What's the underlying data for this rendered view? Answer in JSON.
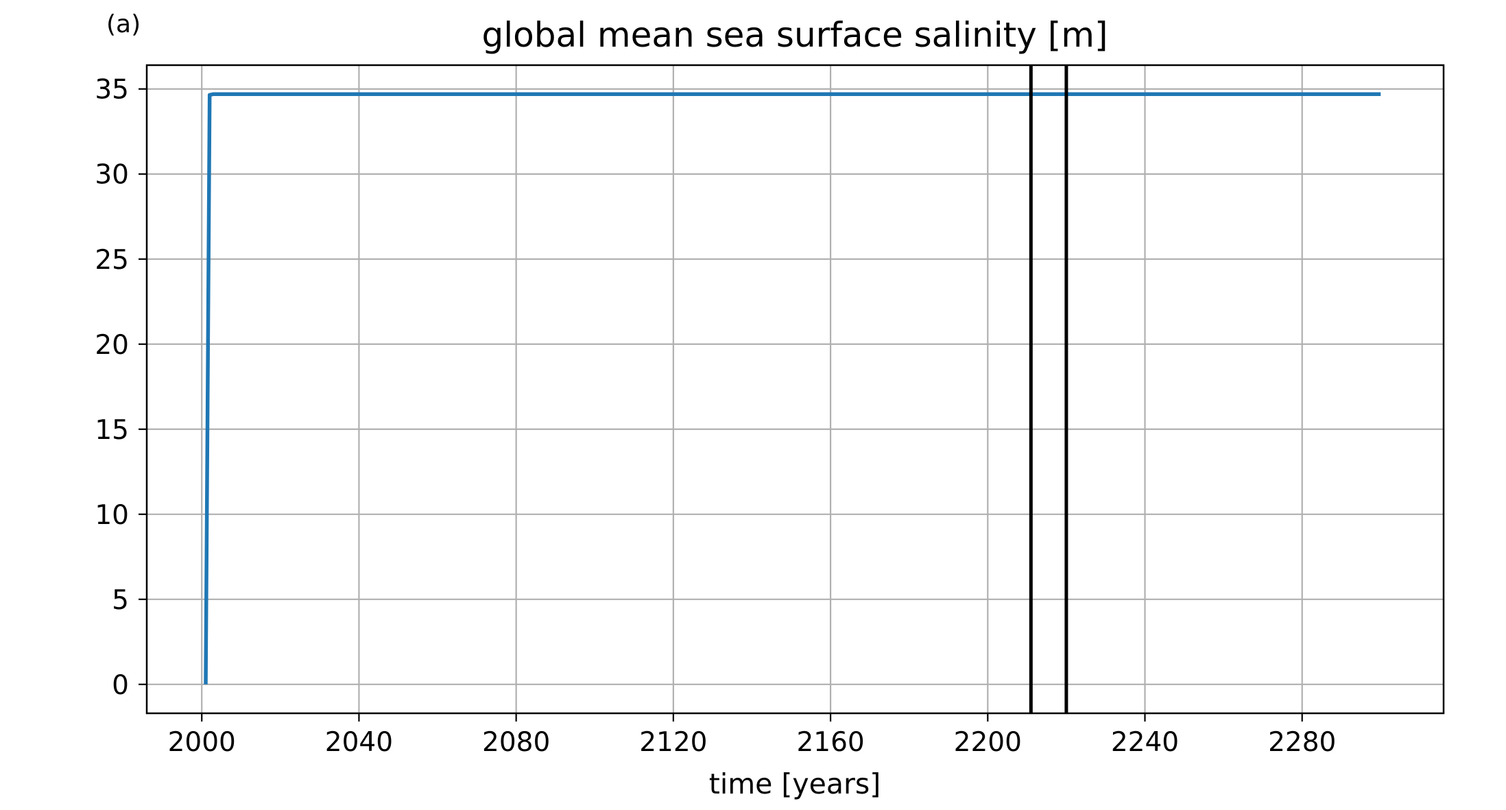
{
  "panel_label": "(a)",
  "chart_data": {
    "type": "line",
    "title": "global mean sea surface salinity [m]",
    "xlabel": "time [years]",
    "ylabel": "",
    "xlim": [
      1986,
      2316
    ],
    "ylim": [
      -1.7,
      36.4
    ],
    "xticks": [
      2000,
      2040,
      2080,
      2120,
      2160,
      2200,
      2240,
      2280
    ],
    "yticks": [
      0,
      5,
      10,
      15,
      20,
      25,
      30,
      35
    ],
    "grid": true,
    "series": [
      {
        "color": "#1f77b4",
        "x": [
          2001,
          2002,
          2003,
          2050,
          2100,
          2150,
          2200,
          2250,
          2300
        ],
        "y": [
          0,
          34.65,
          34.7,
          34.7,
          34.7,
          34.7,
          34.7,
          34.7,
          34.7
        ]
      }
    ],
    "vlines": [
      {
        "x": 2211,
        "color": "#000000"
      },
      {
        "x": 2220,
        "color": "#000000"
      }
    ]
  }
}
